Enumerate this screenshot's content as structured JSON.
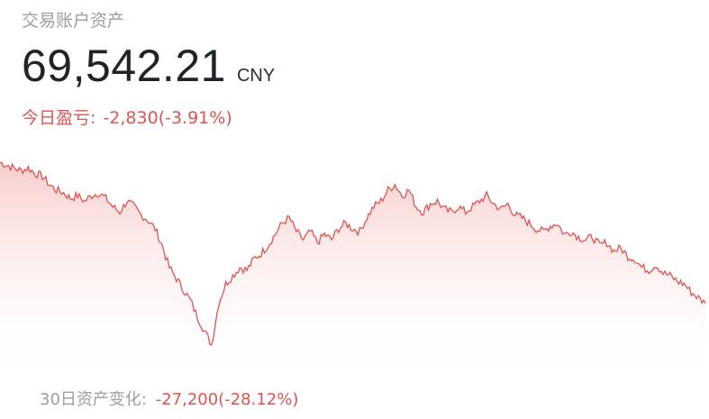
{
  "header": {
    "title": "交易账户资产",
    "amount": "69,542.21",
    "currency": "CNY"
  },
  "daily_pnl": {
    "label": "今日盈亏:",
    "value": "-2,830(-3.91%)"
  },
  "footer": {
    "label": "30日资产变化:",
    "value": "-27,200(-28.12%)"
  },
  "colors": {
    "line": "#e0524f",
    "negative_text": "#e0524f",
    "area_top": "#f7c9c7"
  },
  "chart_data": {
    "type": "area",
    "values": [
      96,
      95,
      94,
      93,
      94,
      92,
      91,
      88,
      86,
      85,
      83,
      84,
      82,
      84,
      85,
      83,
      80,
      78,
      82,
      80,
      77,
      75,
      72,
      66,
      58,
      54,
      50,
      46,
      40,
      35,
      30,
      45,
      52,
      55,
      58,
      57,
      61,
      63,
      66,
      70,
      74,
      76,
      71,
      68,
      71,
      67,
      70,
      68,
      72,
      74,
      72,
      71,
      76,
      80,
      82,
      86,
      88,
      84,
      86,
      80,
      78,
      81,
      82,
      79,
      78,
      80,
      78,
      80,
      82,
      84,
      81,
      79,
      81,
      77,
      76,
      74,
      72,
      71,
      73,
      74,
      70,
      71,
      69,
      68,
      69,
      66,
      67,
      64,
      65,
      62,
      61,
      58,
      57,
      59,
      56,
      55,
      53,
      52,
      49,
      47,
      45
    ]
  }
}
